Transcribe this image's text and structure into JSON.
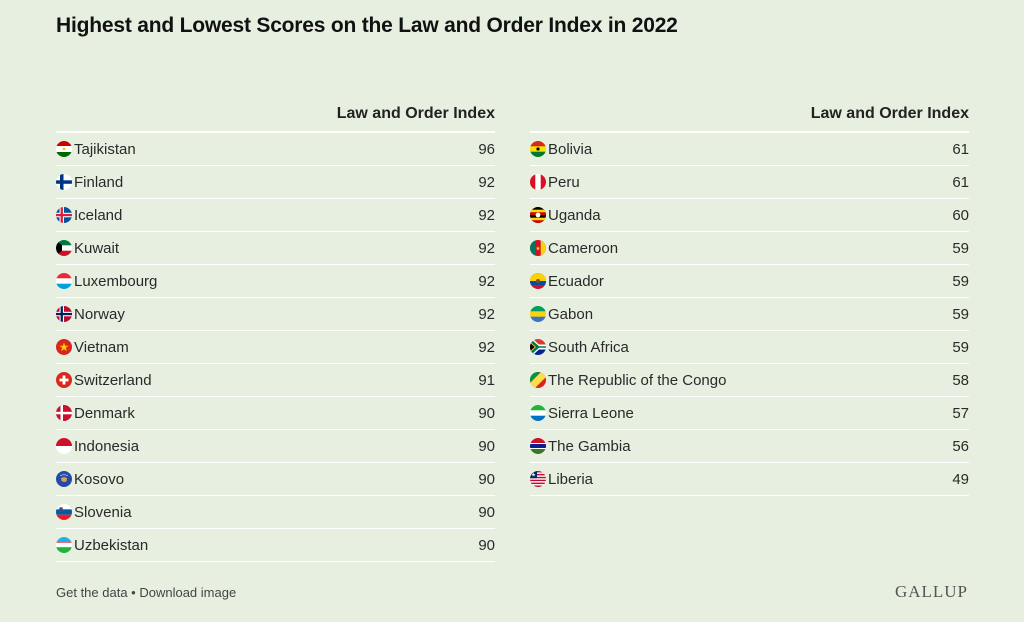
{
  "title": "Highest and Lowest Scores on the Law and Order Index in 2022",
  "chart_data": {
    "type": "table",
    "title": "Highest and Lowest Scores on the Law and Order Index in 2022",
    "column_header": "Law and Order Index",
    "tables": [
      {
        "header": "Law and Order Index",
        "rows": [
          {
            "country": "Tajikistan",
            "value": 96,
            "flag": "tajikistan-flag-icon"
          },
          {
            "country": "Finland",
            "value": 92,
            "flag": "finland-flag-icon"
          },
          {
            "country": "Iceland",
            "value": 92,
            "flag": "iceland-flag-icon"
          },
          {
            "country": "Kuwait",
            "value": 92,
            "flag": "kuwait-flag-icon"
          },
          {
            "country": "Luxembourg",
            "value": 92,
            "flag": "luxembourg-flag-icon"
          },
          {
            "country": "Norway",
            "value": 92,
            "flag": "norway-flag-icon"
          },
          {
            "country": "Vietnam",
            "value": 92,
            "flag": "vietnam-flag-icon"
          },
          {
            "country": "Switzerland",
            "value": 91,
            "flag": "switzerland-flag-icon"
          },
          {
            "country": "Denmark",
            "value": 90,
            "flag": "denmark-flag-icon"
          },
          {
            "country": "Indonesia",
            "value": 90,
            "flag": "indonesia-flag-icon"
          },
          {
            "country": "Kosovo",
            "value": 90,
            "flag": "kosovo-flag-icon"
          },
          {
            "country": "Slovenia",
            "value": 90,
            "flag": "slovenia-flag-icon"
          },
          {
            "country": "Uzbekistan",
            "value": 90,
            "flag": "uzbekistan-flag-icon"
          }
        ]
      },
      {
        "header": "Law and Order Index",
        "rows": [
          {
            "country": "Bolivia",
            "value": 61,
            "flag": "bolivia-flag-icon"
          },
          {
            "country": "Peru",
            "value": 61,
            "flag": "peru-flag-icon"
          },
          {
            "country": "Uganda",
            "value": 60,
            "flag": "uganda-flag-icon"
          },
          {
            "country": "Cameroon",
            "value": 59,
            "flag": "cameroon-flag-icon"
          },
          {
            "country": "Ecuador",
            "value": 59,
            "flag": "ecuador-flag-icon"
          },
          {
            "country": "Gabon",
            "value": 59,
            "flag": "gabon-flag-icon"
          },
          {
            "country": "South Africa",
            "value": 59,
            "flag": "south-africa-flag-icon"
          },
          {
            "country": "The Republic of the Congo",
            "value": 58,
            "flag": "congo-flag-icon"
          },
          {
            "country": "Sierra Leone",
            "value": 57,
            "flag": "sierra-leone-flag-icon"
          },
          {
            "country": "The Gambia",
            "value": 56,
            "flag": "gambia-flag-icon"
          },
          {
            "country": "Liberia",
            "value": 49,
            "flag": "liberia-flag-icon"
          }
        ]
      }
    ]
  },
  "footer": {
    "get_data": "Get the data",
    "separator": " • ",
    "download": "Download image"
  },
  "logo": "GALLUP",
  "colors": {
    "background": "#e7efe1",
    "row_divider": "#ffffff"
  }
}
